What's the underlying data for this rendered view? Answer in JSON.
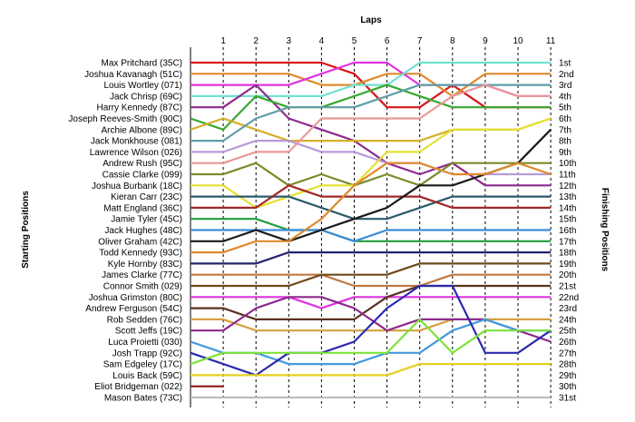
{
  "chart_data": {
    "type": "line",
    "title": "",
    "xlabel": "Laps",
    "ylabel_left": "Starting Positions",
    "ylabel_right": "Finishing Positions",
    "laps": [
      1,
      2,
      3,
      4,
      5,
      6,
      7,
      8,
      9,
      10,
      11
    ],
    "drivers": [
      "Max Pritchard (35C)",
      "Joshua Kavanagh (51C)",
      "Louis Wortley (071)",
      "Jack Chrisp (69C)",
      "Harry Kennedy (87C)",
      "Joseph Reeves-Smith (90C)",
      "Archie Albone (89C)",
      "Jack Monkhouse (081)",
      "Lawrence Wilson (026)",
      "Andrew Rush (95C)",
      "Cassie Clarke (099)",
      "Joshua Burbank (18C)",
      "Kieran Carr (23C)",
      "Matt England (36C)",
      "Jamie Tyler (45C)",
      "Jack Hughes (48C)",
      "Oliver Graham (42C)",
      "Todd Kennedy (93C)",
      "Kyle Hornby (83C)",
      "James Clarke (77C)",
      "Connor Smith (029)",
      "Joshua Grimston (80C)",
      "Andrew Ferguson (54C)",
      "Rob Sedden (76C)",
      "Scott Jeffs (19C)",
      "Luca Proietti (030)",
      "Josh Trapp (92C)",
      "Sam Edgeley (17C)",
      "Louis Back (59C)",
      "Eliot Bridgeman (022)",
      "Mason Bates (73C)"
    ],
    "finishing_labels": [
      "1st",
      "2nd",
      "3rd",
      "4th",
      "5th",
      "6th",
      "7th",
      "8th",
      "9th",
      "10th",
      "11th",
      "12th",
      "13th",
      "14th",
      "15th",
      "16th",
      "17th",
      "18th",
      "19th",
      "20th",
      "21st",
      "22nd",
      "23rd",
      "24th",
      "25th",
      "26th",
      "27th",
      "28th",
      "29th",
      "30th",
      "31st"
    ],
    "series": [
      {
        "color": "#d9141a",
        "positions": [
          1,
          1,
          1,
          1,
          2,
          5,
          5,
          3,
          5,
          5,
          5
        ]
      },
      {
        "color": "#e08a2c",
        "positions": [
          2,
          2,
          2,
          3,
          3,
          2,
          2,
          4,
          2,
          2,
          2
        ]
      },
      {
        "color": "#e033e0",
        "positions": [
          3,
          3,
          3,
          2,
          1,
          1,
          3,
          3,
          3,
          4,
          4
        ]
      },
      {
        "color": "#6fe2d0",
        "positions": [
          4,
          4,
          4,
          4,
          3,
          3,
          1,
          1,
          1,
          1,
          1
        ]
      },
      {
        "color": "#8e2a8e",
        "positions": [
          5,
          3,
          6,
          7,
          8,
          10,
          11,
          10,
          12,
          12,
          12
        ]
      },
      {
        "color": "#3aa830",
        "positions": [
          7,
          4,
          5,
          5,
          4,
          3,
          4,
          5,
          5,
          5,
          5
        ]
      },
      {
        "color": "#d4b02a",
        "positions": [
          6,
          7,
          8,
          8,
          8,
          8,
          8,
          7,
          7,
          7,
          6
        ]
      },
      {
        "color": "#5f9ea8",
        "positions": [
          8,
          6,
          5,
          5,
          5,
          4,
          3,
          3,
          3,
          3,
          3
        ]
      },
      {
        "color": "#b89adb",
        "positions": [
          9,
          8,
          8,
          9,
          9,
          10,
          10,
          11,
          11,
          11,
          11
        ]
      },
      {
        "color": "#e89898",
        "positions": [
          10,
          9,
          9,
          6,
          6,
          6,
          6,
          4,
          3,
          4,
          4
        ]
      },
      {
        "color": "#7a8c2a",
        "positions": [
          11,
          10,
          12,
          11,
          12,
          11,
          12,
          10,
          10,
          10,
          10
        ]
      },
      {
        "color": "#e6e030",
        "positions": [
          12,
          14,
          13,
          12,
          12,
          9,
          9,
          7,
          7,
          7,
          6
        ]
      },
      {
        "color": "#2d5a6e",
        "positions": [
          13,
          13,
          13,
          14,
          15,
          15,
          14,
          13,
          13,
          13,
          13
        ]
      },
      {
        "color": "#a02828",
        "positions": [
          14,
          14,
          12,
          13,
          13,
          13,
          13,
          14,
          14,
          14,
          14
        ]
      },
      {
        "color": "#1f9e3a",
        "positions": [
          15,
          15,
          16,
          16,
          17,
          17,
          17,
          17,
          17,
          17,
          17
        ]
      },
      {
        "color": "#3d8cd9",
        "positions": [
          16,
          16,
          16,
          16,
          17,
          16,
          16,
          16,
          16,
          16,
          16
        ]
      },
      {
        "color": "#1a1a1a",
        "positions": [
          17,
          16,
          17,
          16,
          15,
          14,
          12,
          12,
          11,
          10,
          7
        ]
      },
      {
        "color": "#e08a2c",
        "positions": [
          18,
          17,
          17,
          15,
          12,
          10,
          10,
          11,
          11,
          10,
          11
        ]
      },
      {
        "color": "#24246e",
        "positions": [
          19,
          19,
          18,
          18,
          18,
          18,
          18,
          18,
          18,
          18,
          18
        ]
      },
      {
        "color": "#c07840",
        "positions": [
          20,
          20,
          20,
          20,
          21,
          21,
          21,
          20,
          20,
          20,
          20
        ]
      },
      {
        "color": "#6e4a1a",
        "positions": [
          21,
          21,
          21,
          20,
          20,
          20,
          19,
          19,
          19,
          19,
          19
        ]
      },
      {
        "color": "#e033e0",
        "positions": [
          22,
          22,
          22,
          23,
          22,
          22,
          22,
          22,
          22,
          22,
          22
        ]
      },
      {
        "color": "#5a3220",
        "positions": [
          23,
          24,
          24,
          24,
          24,
          22,
          21,
          21,
          21,
          21,
          21
        ]
      },
      {
        "color": "#d4a040",
        "positions": [
          24,
          25,
          25,
          25,
          25,
          25,
          25,
          24,
          24,
          24,
          24
        ]
      },
      {
        "color": "#8e2a8e",
        "positions": [
          25,
          23,
          22,
          22,
          23,
          25,
          24,
          24,
          24,
          25,
          26
        ]
      },
      {
        "color": "#4499dd",
        "positions": [
          27,
          27,
          28,
          28,
          28,
          27,
          27,
          25,
          24,
          25,
          25
        ]
      },
      {
        "color": "#2a2ab0",
        "positions": [
          28,
          29,
          27,
          27,
          26,
          23,
          21,
          21,
          27,
          27,
          25
        ]
      },
      {
        "color": "#7fe23a",
        "positions": [
          27,
          27,
          27,
          27,
          27,
          27,
          24,
          27,
          25,
          25,
          25
        ]
      },
      {
        "color": "#e6d020",
        "positions": [
          29,
          29,
          29,
          29,
          29,
          29,
          28,
          28,
          28,
          28,
          28
        ]
      },
      {
        "color": "#8b1a1a",
        "positions": [
          30,
          null,
          null,
          null,
          null,
          null,
          null,
          null,
          null,
          null,
          null
        ]
      },
      {
        "color": "#bdbdbd",
        "positions": [
          31,
          31,
          31,
          31,
          31,
          31,
          31,
          31,
          31,
          31,
          31
        ]
      }
    ]
  }
}
